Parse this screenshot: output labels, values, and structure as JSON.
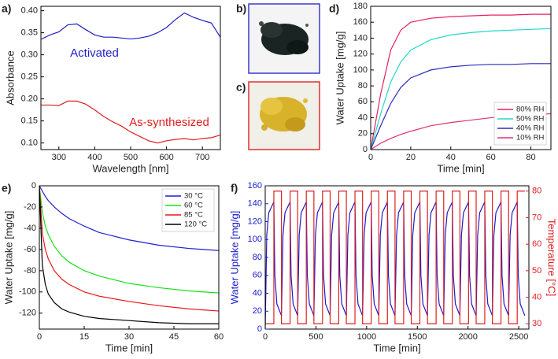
{
  "chart_data": [
    {
      "type": "line",
      "label": "a)",
      "x_label": "Wavelength [nm]",
      "y_label": "Absorbance",
      "x": [
        250,
        275,
        300,
        325,
        350,
        375,
        400,
        425,
        450,
        475,
        500,
        525,
        550,
        575,
        600,
        625,
        650,
        675,
        700,
        725,
        750
      ],
      "series": [
        {
          "name": "Activated",
          "color": "#1f1fc8",
          "values": [
            0.335,
            0.345,
            0.352,
            0.368,
            0.37,
            0.357,
            0.345,
            0.34,
            0.34,
            0.338,
            0.336,
            0.338,
            0.342,
            0.35,
            0.362,
            0.38,
            0.395,
            0.385,
            0.378,
            0.372,
            0.34
          ]
        },
        {
          "name": "As-synthesized",
          "color": "#e02020",
          "values": [
            0.186,
            0.186,
            0.185,
            0.195,
            0.195,
            0.188,
            0.175,
            0.16,
            0.148,
            0.138,
            0.125,
            0.115,
            0.105,
            0.1,
            0.105,
            0.108,
            0.11,
            0.107,
            0.11,
            0.112,
            0.118
          ]
        }
      ],
      "xlim": [
        250,
        750
      ],
      "xticks": [
        300,
        400,
        500,
        600,
        700
      ],
      "ylim": [
        0.085,
        0.41
      ],
      "yticks": [
        {
          "value": 0.1,
          "label": "0.10"
        },
        {
          "value": 0.15,
          "label": "0.15"
        },
        {
          "value": 0.2,
          "label": "0.20"
        },
        {
          "value": 0.25,
          "label": "0.25"
        },
        {
          "value": 0.3,
          "label": "0.30"
        },
        {
          "value": 0.35,
          "label": "0.35"
        },
        {
          "value": 0.4,
          "label": "0.40"
        }
      ]
    },
    {
      "type": "line",
      "label": "d)",
      "x_label": "Time [min]",
      "y_label": "Water Uptake [mg/g]",
      "x": [
        0,
        5,
        10,
        15,
        20,
        30,
        40,
        50,
        60,
        70,
        80,
        90
      ],
      "series": [
        {
          "name": "80% RH",
          "color": "#e8205f",
          "values": [
            0,
            70,
            125,
            150,
            160,
            165,
            167,
            168,
            169,
            169,
            170,
            170
          ]
        },
        {
          "name": "50% RH",
          "color": "#22d8c8",
          "values": [
            0,
            45,
            85,
            110,
            125,
            138,
            144,
            147,
            149,
            150,
            151,
            152
          ]
        },
        {
          "name": "40% RH",
          "color": "#2a2ac0",
          "values": [
            0,
            30,
            58,
            78,
            90,
            100,
            104,
            106,
            107,
            107,
            108,
            108
          ]
        },
        {
          "name": "10% RH",
          "color": "#e0307a",
          "values": [
            0,
            8,
            14,
            19,
            23,
            30,
            34,
            37,
            40,
            42,
            44,
            45
          ]
        }
      ],
      "xlim": [
        0,
        90
      ],
      "xticks": [
        0,
        20,
        40,
        60,
        80
      ],
      "ylim": [
        0,
        180
      ],
      "yticks": [
        0,
        20,
        40,
        60,
        80,
        100,
        120,
        140,
        160,
        180
      ],
      "legend": "lower right"
    },
    {
      "type": "line",
      "label": "e)",
      "x_label": "Time [min]",
      "y_label": "Water Uptake [mg/g]",
      "x": [
        0,
        1,
        2,
        3,
        5,
        7.5,
        10,
        15,
        20,
        30,
        40,
        50,
        60
      ],
      "series": [
        {
          "name": "30 °C",
          "color": "#1f1fd0",
          "values": [
            0,
            -5,
            -10,
            -14,
            -20,
            -26,
            -31,
            -38,
            -44,
            -51,
            -56,
            -59,
            -61
          ]
        },
        {
          "name": "60 °C",
          "color": "#18e018",
          "values": [
            0,
            -25,
            -38,
            -46,
            -57,
            -66,
            -72,
            -80,
            -85,
            -92,
            -96,
            -99,
            -101
          ]
        },
        {
          "name": "85 °C",
          "color": "#e81818",
          "values": [
            0,
            -45,
            -60,
            -69,
            -80,
            -88,
            -93,
            -100,
            -104,
            -109,
            -113,
            -116,
            -118
          ]
        },
        {
          "name": "120 °C",
          "color": "#000000",
          "values": [
            0,
            -75,
            -93,
            -102,
            -110,
            -116,
            -119,
            -123,
            -125,
            -127,
            -129,
            -130,
            -130
          ]
        }
      ],
      "xlim": [
        0,
        60
      ],
      "xticks": [
        0,
        15,
        30,
        45,
        60
      ],
      "ylim": [
        -135,
        0
      ],
      "yticks": [
        0,
        -20,
        -40,
        -60,
        -80,
        -100,
        -120
      ],
      "legend": "upper right"
    },
    {
      "type": "line",
      "label": "f)",
      "x_label": "Time [min]",
      "y_label": "Water Uptake [mg/g]",
      "y2_label": "Temperature [°C]",
      "y_color": "#1a1acd",
      "y2_color": "#e02020",
      "series": [
        {
          "color": "#1a1acd",
          "x": [
            0,
            15,
            35,
            85,
            95,
            115,
            160,
            175,
            195,
            245,
            255,
            275,
            320,
            335,
            355,
            405,
            415,
            435,
            480,
            495,
            515,
            565,
            575,
            595,
            640,
            655,
            675,
            725,
            735,
            755,
            800,
            815,
            835,
            885,
            895,
            915,
            960,
            975,
            995,
            1045,
            1055,
            1075,
            1120,
            1135,
            1155,
            1205,
            1215,
            1235,
            1280,
            1295,
            1315,
            1365,
            1375,
            1395,
            1440,
            1455,
            1475,
            1525,
            1535,
            1555,
            1600,
            1615,
            1635,
            1685,
            1695,
            1715,
            1760,
            1775,
            1795,
            1845,
            1855,
            1875,
            1920,
            1935,
            1955,
            2005,
            2015,
            2035,
            2080,
            2095,
            2115,
            2165,
            2175,
            2195,
            2240,
            2255,
            2275,
            2325,
            2335,
            2355,
            2400,
            2415,
            2435,
            2485,
            2495,
            2515,
            2560
          ],
          "values": [
            0,
            105,
            130,
            142,
            60,
            28,
            15,
            105,
            130,
            142,
            60,
            28,
            15,
            105,
            130,
            142,
            60,
            28,
            15,
            105,
            130,
            142,
            60,
            28,
            15,
            105,
            130,
            142,
            60,
            28,
            15,
            105,
            130,
            142,
            60,
            28,
            15,
            105,
            130,
            142,
            60,
            28,
            15,
            105,
            130,
            142,
            60,
            28,
            15,
            105,
            130,
            142,
            60,
            28,
            15,
            105,
            130,
            142,
            60,
            28,
            15,
            105,
            130,
            142,
            60,
            28,
            15,
            105,
            130,
            142,
            60,
            28,
            15,
            105,
            130,
            142,
            60,
            28,
            15,
            105,
            130,
            142,
            60,
            28,
            15,
            105,
            130,
            142,
            60,
            28,
            15,
            105,
            130,
            142,
            60,
            28,
            15
          ]
        },
        {
          "color": "#e02020",
          "axis": "y2",
          "x": [
            0,
            85,
            85,
            160,
            160,
            245,
            245,
            320,
            320,
            405,
            405,
            480,
            480,
            565,
            565,
            640,
            640,
            725,
            725,
            800,
            800,
            885,
            885,
            960,
            960,
            1045,
            1045,
            1120,
            1120,
            1205,
            1205,
            1280,
            1280,
            1365,
            1365,
            1440,
            1440,
            1525,
            1525,
            1600,
            1600,
            1685,
            1685,
            1760,
            1760,
            1845,
            1845,
            1920,
            1920,
            2005,
            2005,
            2080,
            2080,
            2165,
            2165,
            2240,
            2240,
            2325,
            2325,
            2400,
            2400,
            2485,
            2485,
            2560
          ],
          "values": [
            30,
            30,
            80,
            80,
            30,
            30,
            80,
            80,
            30,
            30,
            80,
            80,
            30,
            30,
            80,
            80,
            30,
            30,
            80,
            80,
            30,
            30,
            80,
            80,
            30,
            30,
            80,
            80,
            30,
            30,
            80,
            80,
            30,
            30,
            80,
            80,
            30,
            30,
            80,
            80,
            30,
            30,
            80,
            80,
            30,
            30,
            80,
            80,
            30,
            30,
            80,
            80,
            30,
            30,
            80,
            80,
            30,
            30,
            80,
            80,
            30,
            30,
            80,
            80
          ]
        }
      ],
      "xlim": [
        0,
        2600
      ],
      "xticks": [
        0,
        500,
        1000,
        1500,
        2000,
        2500
      ],
      "ylim": [
        0,
        160
      ],
      "yticks": [
        0,
        20,
        40,
        60,
        80,
        100,
        120,
        140,
        160
      ],
      "y2lim": [
        28,
        82
      ],
      "y2ticks": [
        30,
        40,
        50,
        60,
        70,
        80
      ]
    }
  ],
  "images": [
    {
      "label": "b)",
      "border": "#3a3ad0"
    },
    {
      "label": "c)",
      "border": "#e03030"
    }
  ]
}
